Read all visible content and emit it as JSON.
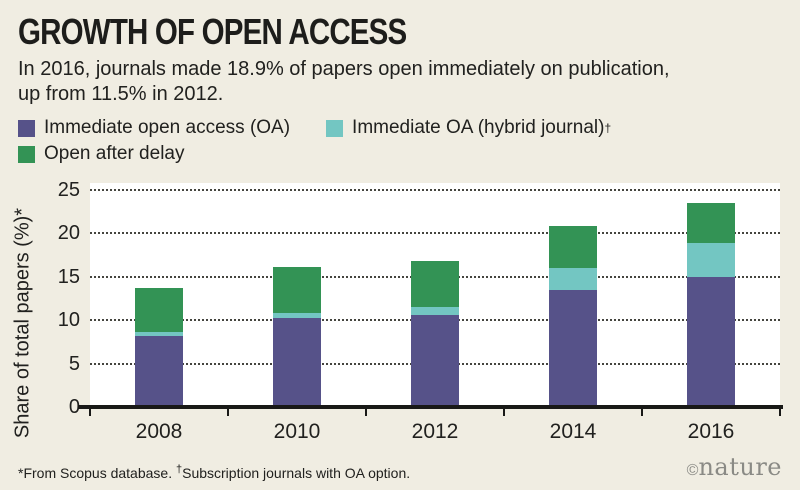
{
  "header": {
    "title": "GROWTH OF OPEN ACCESS",
    "subtitle_line1": "In 2016, journals made 18.9% of papers open immediately on publication,",
    "subtitle_line2": "up from 11.5% in 2012."
  },
  "legend": {
    "items": [
      {
        "label": "Immediate open access (OA)",
        "sup": "",
        "color": "#565289",
        "row": 0
      },
      {
        "label": "Immediate OA (hybrid journal)",
        "sup": "†",
        "color": "#73c6c2",
        "row": 0
      },
      {
        "label": "Open after delay",
        "sup": "",
        "color": "#339355",
        "row": 1
      }
    ]
  },
  "chart_data": {
    "type": "bar",
    "stacked": true,
    "title": "Growth of open access",
    "categories": [
      "2008",
      "2010",
      "2012",
      "2014",
      "2016"
    ],
    "series": [
      {
        "name": "Immediate open access (OA)",
        "color": "#565289",
        "values": [
          8.2,
          10.2,
          10.6,
          13.5,
          15.0
        ]
      },
      {
        "name": "Immediate OA (hybrid journal)",
        "color": "#73c6c2",
        "values": [
          0.4,
          0.6,
          0.9,
          2.5,
          3.9
        ]
      },
      {
        "name": "Open after delay",
        "color": "#339355",
        "values": [
          5.1,
          5.3,
          5.3,
          4.8,
          4.6
        ]
      }
    ],
    "stack_totals": [
      13.7,
      16.1,
      16.8,
      20.8,
      23.5
    ],
    "xlabel": "",
    "ylabel": "Share of total papers (%)*",
    "yticks": [
      0,
      5,
      10,
      15,
      20,
      25
    ],
    "ylim": [
      0,
      25
    ],
    "grid": "dotted horizontal",
    "legend_position": "top"
  },
  "footer": {
    "note_part1": "*From Scopus database. ",
    "note_dagger": "†",
    "note_part2": "Subscription journals with OA option.",
    "brand_copyright": "©",
    "brand_name": "nature"
  },
  "colors": {
    "background": "#f0ede2",
    "plot_background": "#ffffff",
    "axis": "#191917",
    "text": "#21211f",
    "brand_gray": "#8a8a85"
  }
}
